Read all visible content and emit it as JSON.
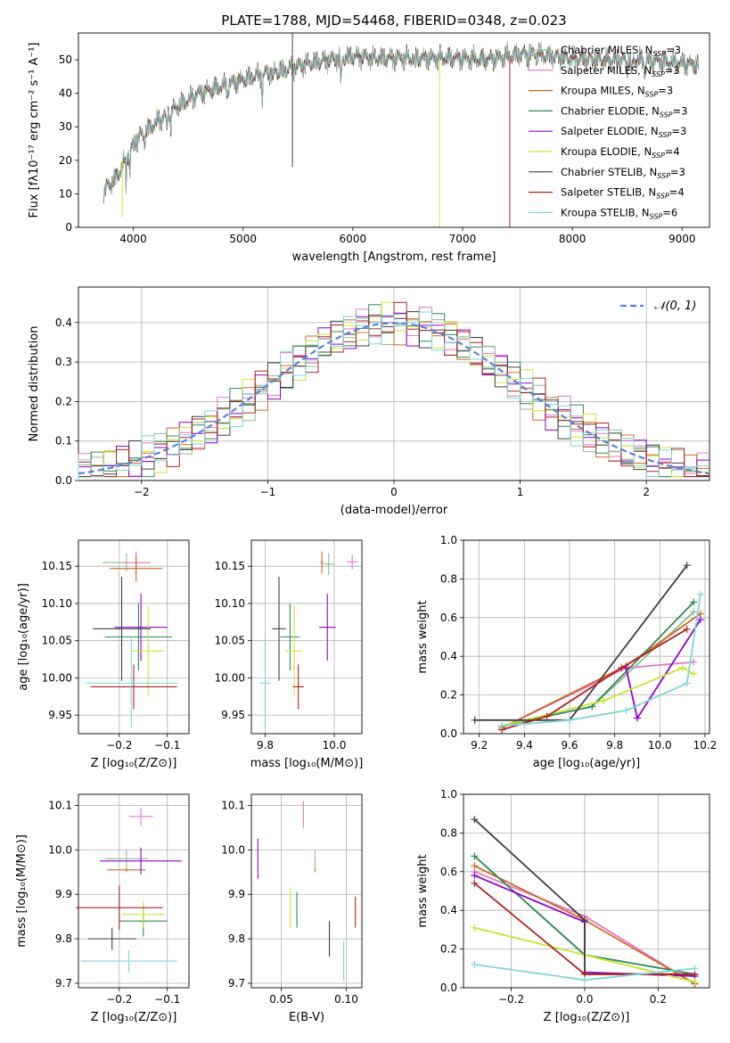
{
  "figure_title": "PLATE=1788, MJD=54468, FIBERID=0348, z=0.023",
  "colors": [
    "#8fbc8f",
    "#e377c2",
    "#d2691e",
    "#2e8b57",
    "#9400d3",
    "#c8e632",
    "#404040",
    "#b22222",
    "#7fd6d6"
  ],
  "chart_data": [
    {
      "id": "spectrum",
      "type": "line",
      "title": "PLATE=1788, MJD=54468, FIBERID=0348, z=0.023",
      "xlabel": "wavelength [Angstrom, rest frame]",
      "ylabel": "Flux [fλ10⁻¹⁷ erg cm⁻² s⁻¹ A⁻¹]",
      "xlim": [
        3500,
        9250
      ],
      "ylim": [
        0,
        58
      ],
      "xticks": [
        4000,
        5000,
        6000,
        7000,
        8000,
        9000
      ],
      "yticks": [
        0,
        10,
        20,
        30,
        40,
        50
      ],
      "legend_position": "top-right",
      "grid": false,
      "continuum_x": [
        3730,
        3850,
        3950,
        4050,
        4200,
        4400,
        4600,
        4800,
        5000,
        5200,
        5400,
        5600,
        5800,
        6000,
        6200,
        6400,
        6600,
        6800,
        7000,
        7200,
        7400,
        7600,
        7800,
        8000,
        8200,
        8400,
        8600,
        8800,
        9000,
        9150
      ],
      "continuum_y": [
        11,
        15,
        22,
        27,
        31,
        36,
        40,
        42,
        44,
        46,
        47,
        49,
        50,
        51,
        50.5,
        50.5,
        50.5,
        50.5,
        50.5,
        50,
        51,
        52,
        51,
        50.5,
        50,
        50,
        50,
        49.5,
        49,
        48.5
      ],
      "series": [
        {
          "name": "Chabrier MILES, N",
          "sub": "SSP",
          "suffix": "=3"
        },
        {
          "name": "Salpeter MILES, N",
          "sub": "SSP",
          "suffix": "=3"
        },
        {
          "name": "Kroupa MILES, N",
          "sub": "SSP",
          "suffix": "=3"
        },
        {
          "name": "Chabrier ELODIE, N",
          "sub": "SSP",
          "suffix": "=3"
        },
        {
          "name": "Salpeter ELODIE, N",
          "sub": "SSP",
          "suffix": "=3"
        },
        {
          "name": "Kroupa ELODIE, N",
          "sub": "SSP",
          "suffix": "=4"
        },
        {
          "name": "Chabrier STELIB, N",
          "sub": "SSP",
          "suffix": "=3"
        },
        {
          "name": "Salpeter STELIB, N",
          "sub": "SSP",
          "suffix": "=4"
        },
        {
          "name": "Kroupa STELIB, N",
          "sub": "SSP",
          "suffix": "=6"
        }
      ]
    },
    {
      "id": "residuals",
      "type": "histogram",
      "xlabel": "(data-model)/error",
      "ylabel": "Normed distribution",
      "xlim": [
        -2.5,
        2.5
      ],
      "ylim": [
        0,
        0.49
      ],
      "xticks": [
        -2,
        -1,
        0,
        1,
        2
      ],
      "yticks": [
        0.0,
        0.1,
        0.2,
        0.3,
        0.4
      ],
      "grid": true,
      "legend_label": "𝒩(0, 1)",
      "bin_start": -2.5,
      "bin_width": 0.1
    },
    {
      "id": "age-vs-z",
      "type": "errorbar",
      "xlabel": "Z [log₁₀(Z/Z⊙)]",
      "ylabel": "age  [log₁₀(age/yr)]",
      "xlim": [
        -0.285,
        -0.055
      ],
      "ylim": [
        9.925,
        10.185
      ],
      "xticks": [
        -0.2,
        -0.1
      ],
      "yticks": [
        9.95,
        10.0,
        10.05,
        10.1,
        10.15
      ],
      "grid": true,
      "points": [
        {
          "x": -0.185,
          "y": 10.155,
          "xerr": 0.05,
          "yerr": 0.012
        },
        {
          "x": -0.165,
          "y": 10.155,
          "xerr": 0.03,
          "yerr": 0.015
        },
        {
          "x": -0.165,
          "y": 10.147,
          "xerr": 0.055,
          "yerr": 0.018
        },
        {
          "x": -0.16,
          "y": 10.055,
          "xerr": 0.07,
          "yerr": 0.045
        },
        {
          "x": -0.155,
          "y": 10.068,
          "xerr": 0.055,
          "yerr": 0.045
        },
        {
          "x": -0.14,
          "y": 10.036,
          "xerr": 0.035,
          "yerr": 0.06
        },
        {
          "x": -0.195,
          "y": 10.066,
          "xerr": 0.06,
          "yerr": 0.07
        },
        {
          "x": -0.17,
          "y": 9.988,
          "xerr": 0.09,
          "yerr": 0.03
        },
        {
          "x": -0.175,
          "y": 9.993,
          "xerr": 0.095,
          "yerr": 0.06
        }
      ]
    },
    {
      "id": "age-vs-mass",
      "type": "errorbar",
      "xlabel": "mass [log₁₀(M/M⊙)]",
      "ylabel": "",
      "xlim": [
        9.7,
        10.1
      ],
      "ylim": [
        9.925,
        10.185
      ],
      "xticks": [
        9.75,
        10.0
      ],
      "yticks": [
        9.95,
        10.0,
        10.05,
        10.1,
        10.15
      ],
      "grid": true,
      "points": [
        {
          "x": 9.98,
          "y": 10.153,
          "xerr": 0.02,
          "yerr": 0.015
        },
        {
          "x": 10.065,
          "y": 10.156,
          "xerr": 0.02,
          "yerr": 0.01
        },
        {
          "x": 9.955,
          "y": 10.155,
          "xerr": 0.005,
          "yerr": 0.015
        },
        {
          "x": 9.84,
          "y": 10.055,
          "xerr": 0.035,
          "yerr": 0.045
        },
        {
          "x": 9.975,
          "y": 10.068,
          "xerr": 0.03,
          "yerr": 0.045
        },
        {
          "x": 9.855,
          "y": 10.036,
          "xerr": 0.03,
          "yerr": 0.06
        },
        {
          "x": 9.8,
          "y": 10.066,
          "xerr": 0.025,
          "yerr": 0.07
        },
        {
          "x": 9.87,
          "y": 9.988,
          "xerr": 0.02,
          "yerr": 0.03
        },
        {
          "x": 9.75,
          "y": 9.993,
          "xerr": 0.02,
          "yerr": 0.06
        }
      ]
    },
    {
      "id": "massweight-vs-age",
      "type": "line",
      "xlabel": "age  [log₁₀(age/yr)]",
      "ylabel": "mass weight",
      "xlim": [
        9.13,
        10.22
      ],
      "ylim": [
        0,
        1.0
      ],
      "xticks": [
        9.2,
        9.4,
        9.6,
        9.8,
        10.0,
        10.2
      ],
      "yticks": [
        0.0,
        0.2,
        0.4,
        0.6,
        0.8,
        1.0
      ],
      "grid": true,
      "series": [
        {
          "x": [
            9.3,
            9.7,
            10.15
          ],
          "y": [
            0.04,
            0.14,
            0.63
          ]
        },
        {
          "x": [
            9.3,
            9.85,
            10.15
          ],
          "y": [
            0.03,
            0.34,
            0.37
          ]
        },
        {
          "x": [
            9.3,
            9.85,
            10.18
          ],
          "y": [
            0.03,
            0.35,
            0.62
          ]
        },
        {
          "x": [
            9.3,
            9.7,
            10.15
          ],
          "y": [
            0.04,
            0.14,
            0.68
          ]
        },
        {
          "x": [
            9.85,
            9.9,
            10.18
          ],
          "y": [
            0.34,
            0.08,
            0.59
          ]
        },
        {
          "x": [
            9.3,
            9.75,
            10.1,
            10.15
          ],
          "y": [
            0.04,
            0.17,
            0.34,
            0.31
          ]
        },
        {
          "x": [
            9.18,
            9.6,
            10.12
          ],
          "y": [
            0.07,
            0.07,
            0.87
          ]
        },
        {
          "x": [
            9.3,
            9.5,
            9.83,
            10.12
          ],
          "y": [
            0.02,
            0.09,
            0.34,
            0.54
          ]
        },
        {
          "x": [
            9.3,
            9.6,
            9.85,
            10.12,
            10.18
          ],
          "y": [
            0.04,
            0.07,
            0.12,
            0.26,
            0.72
          ]
        }
      ]
    },
    {
      "id": "mass-vs-z",
      "type": "errorbar",
      "xlabel": "Z [log₁₀(Z/Z⊙)]",
      "ylabel": "mass [log₁₀(M/M⊙)]",
      "xlim": [
        -0.285,
        -0.055
      ],
      "ylim": [
        9.69,
        10.125
      ],
      "xticks": [
        -0.2,
        -0.1
      ],
      "yticks": [
        9.7,
        9.8,
        9.9,
        10.0,
        10.1
      ],
      "grid": true,
      "points": [
        {
          "x": -0.185,
          "y": 9.98,
          "xerr": 0.045,
          "yerr": 0.02
        },
        {
          "x": -0.155,
          "y": 10.075,
          "xerr": 0.025,
          "yerr": 0.02
        },
        {
          "x": -0.185,
          "y": 9.955,
          "xerr": 0.04,
          "yerr": 0.005
        },
        {
          "x": -0.15,
          "y": 9.84,
          "xerr": 0.05,
          "yerr": 0.035
        },
        {
          "x": -0.155,
          "y": 9.975,
          "xerr": 0.085,
          "yerr": 0.03
        },
        {
          "x": -0.15,
          "y": 9.855,
          "xerr": 0.045,
          "yerr": 0.03
        },
        {
          "x": -0.215,
          "y": 9.8,
          "xerr": 0.05,
          "yerr": 0.025
        },
        {
          "x": -0.2,
          "y": 9.87,
          "xerr": 0.09,
          "yerr": 0.05
        },
        {
          "x": -0.18,
          "y": 9.75,
          "xerr": 0.1,
          "yerr": 0.025
        }
      ]
    },
    {
      "id": "mass-vs-ebv",
      "type": "errorbar",
      "xlabel": "E(B-V)",
      "ylabel": "",
      "xlim": [
        0.027,
        0.112
      ],
      "ylim": [
        9.69,
        10.125
      ],
      "xticks": [
        0.05,
        0.1
      ],
      "yticks": [
        9.7,
        9.8,
        9.9,
        10.0,
        10.1
      ],
      "grid": true,
      "points": [
        {
          "x": 0.076,
          "y": 9.98,
          "xerr": 0,
          "yerr": 0.02
        },
        {
          "x": 0.067,
          "y": 10.08,
          "xerr": 0,
          "yerr": 0.03
        },
        {
          "x": 0.076,
          "y": 9.955,
          "xerr": 0,
          "yerr": 0.005
        },
        {
          "x": 0.062,
          "y": 9.865,
          "xerr": 0,
          "yerr": 0.04
        },
        {
          "x": 0.032,
          "y": 9.98,
          "xerr": 0,
          "yerr": 0.045
        },
        {
          "x": 0.057,
          "y": 9.87,
          "xerr": 0,
          "yerr": 0.045
        },
        {
          "x": 0.087,
          "y": 9.8,
          "xerr": 0,
          "yerr": 0.04
        },
        {
          "x": 0.107,
          "y": 9.86,
          "xerr": 0,
          "yerr": 0.035
        },
        {
          "x": 0.098,
          "y": 9.75,
          "xerr": 0,
          "yerr": 0.045
        }
      ]
    },
    {
      "id": "massweight-vs-z",
      "type": "line",
      "xlabel": "Z [log₁₀(Z/Z⊙)]",
      "ylabel": "mass weight",
      "xlim": [
        -0.33,
        0.34
      ],
      "ylim": [
        0,
        1.0
      ],
      "xticks": [
        -0.2,
        0.0,
        0.2
      ],
      "yticks": [
        0.0,
        0.2,
        0.4,
        0.6,
        0.8,
        1.0
      ],
      "grid": true,
      "series": [
        {
          "x": [
            -0.3,
            0.0,
            0.3
          ],
          "y": [
            0.68,
            0.17,
            0.03
          ]
        },
        {
          "x": [
            -0.3,
            0.0,
            0.3
          ],
          "y": [
            0.6,
            0.37,
            0.02
          ]
        },
        {
          "x": [
            -0.3,
            0.0,
            0.3
          ],
          "y": [
            0.63,
            0.35,
            0.02
          ]
        },
        {
          "x": [
            -0.3,
            0.0,
            0.3
          ],
          "y": [
            0.68,
            0.17,
            0.07
          ]
        },
        {
          "x": [
            -0.3,
            0.0,
            0.0,
            0.3
          ],
          "y": [
            0.58,
            0.34,
            0.08,
            0.06
          ]
        },
        {
          "x": [
            -0.3,
            0.0,
            0.3
          ],
          "y": [
            0.31,
            0.17,
            0.03
          ]
        },
        {
          "x": [
            -0.3,
            0.0,
            0.0,
            0.3
          ],
          "y": [
            0.87,
            0.35,
            0.07,
            0.07
          ]
        },
        {
          "x": [
            -0.3,
            0.0,
            0.3
          ],
          "y": [
            0.54,
            0.07,
            0.07
          ]
        },
        {
          "x": [
            -0.3,
            0.0,
            0.3
          ],
          "y": [
            0.12,
            0.04,
            0.1
          ]
        }
      ]
    }
  ]
}
